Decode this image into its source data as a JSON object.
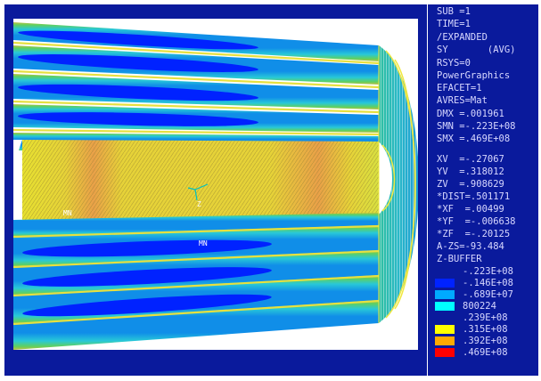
{
  "status": {
    "sub": "SUB =1",
    "time": "TIME=1",
    "expanded": "/EXPANDED",
    "result": "SY       (AVG)",
    "rsys": "RSYS=0",
    "graphics": "PowerGraphics",
    "efacet": "EFACET=1",
    "avres": "AVRES=Mat",
    "dmx": "DMX =.001961",
    "smn": "SMN =-.223E+08",
    "smx": "SMX =.469E+08"
  },
  "view": {
    "xv": "XV  =-.27067",
    "yv": "YV  =.318012",
    "zv": "ZV  =.908629",
    "dist": "*DIST=.501171",
    "xf": "*XF  =.00499",
    "yf": "*YF  =-.006638",
    "zf": "*ZF  =-.20125",
    "azs": "A-ZS=-93.484",
    "zbuffer": "Z-BUFFER"
  },
  "legend": {
    "top_value": "-.223E+08",
    "entries": [
      {
        "color": "#0022ff",
        "value": "-.146E+08"
      },
      {
        "color": "#00aaff",
        "value": "-.689E+07"
      },
      {
        "color": "#00ffff",
        "value": "800224"
      },
      {
        "color": null,
        "value": ".239E+08"
      },
      {
        "color": "#ffff00",
        "value": ".315E+08"
      },
      {
        "color": "#ffaa00",
        "value": ".392E+08"
      },
      {
        "color": "#ff0000",
        "value": ".469E+08"
      }
    ]
  },
  "model": {
    "min_label_1": "MN",
    "min_label_2": "MN",
    "triad_label": "Z"
  },
  "colors": {
    "background": "#0a1a9c",
    "text": "#d8d8ff"
  }
}
